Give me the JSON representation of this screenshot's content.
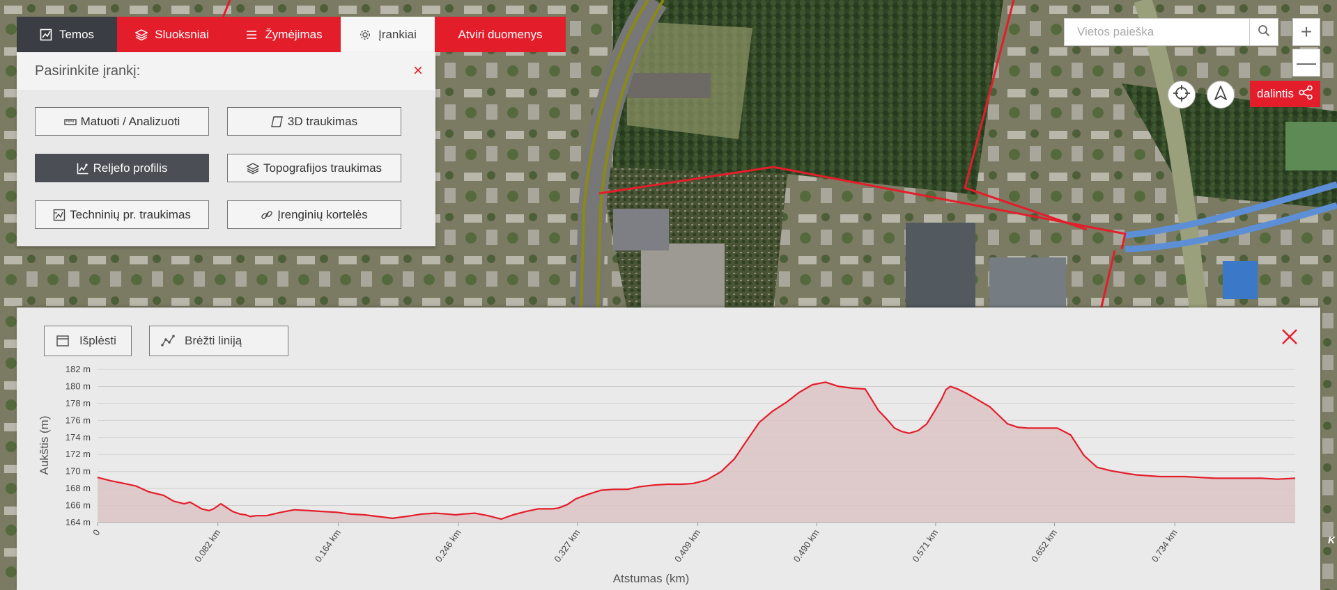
{
  "tabs": [
    {
      "label": "Temos",
      "icon": "chart-icon"
    },
    {
      "label": "Sluoksniai",
      "icon": "layers-icon"
    },
    {
      "label": "Žymėjimas",
      "icon": "menu-icon"
    },
    {
      "label": "Įrankiai",
      "icon": "gear-icon"
    },
    {
      "label": "Atviri duomenys",
      "icon": ""
    }
  ],
  "tools_panel": {
    "title": "Pasirinkite įrankį:",
    "close_icon": "close-icon",
    "buttons": [
      {
        "label": "Matuoti / Analizuoti",
        "icon": "ruler-icon",
        "active": false
      },
      {
        "label": "3D traukimas",
        "icon": "cube-icon",
        "active": false
      },
      {
        "label": "Reljefo profilis",
        "icon": "profile-icon",
        "active": true
      },
      {
        "label": "Topografijos traukimas",
        "icon": "layers-icon",
        "active": false
      },
      {
        "label": "Techninių pr. traukimas",
        "icon": "draft-icon",
        "active": false
      },
      {
        "label": "Įrenginių kortelės",
        "icon": "link-icon",
        "active": false
      }
    ]
  },
  "search": {
    "placeholder": "Vietos paieška",
    "value": ""
  },
  "zoom": {
    "in": "+",
    "out": "—"
  },
  "share": {
    "label": "dalintis"
  },
  "profile_panel": {
    "expand_label": "Išplėsti",
    "draw_label": "Brėžti liniją"
  },
  "map_corner_text": "K",
  "colors": {
    "accent": "#e41d2b",
    "dark": "#3a3d44",
    "profile_fill": "#dcc4c4",
    "profile_line": "#e41d2b"
  },
  "chart_data": {
    "type": "area",
    "xlabel": "Atstumas (km)",
    "ylabel": "Aukštis (m)",
    "x_ticks": [
      "0",
      "0.082 km",
      "0.164 km",
      "0.246 km",
      "0.327 km",
      "0.409 km",
      "0.490 km",
      "0.571 km",
      "0.652 km",
      "0.734 km"
    ],
    "x_tick_values": [
      0,
      0.082,
      0.164,
      0.246,
      0.327,
      0.409,
      0.49,
      0.571,
      0.652,
      0.734
    ],
    "y_ticks": [
      "164 m",
      "166 m",
      "168 m",
      "170 m",
      "172 m",
      "174 m",
      "176 m",
      "178 m",
      "180 m",
      "182 m"
    ],
    "y_tick_values": [
      164,
      166,
      168,
      170,
      172,
      174,
      176,
      178,
      180,
      182
    ],
    "xlim": [
      0,
      0.816
    ],
    "ylim": [
      164,
      182
    ],
    "grid": true,
    "series": [
      {
        "x": [
          0,
          0.009,
          0.018,
          0.026,
          0.035,
          0.045,
          0.052,
          0.059,
          0.063,
          0.071,
          0.076,
          0.079,
          0.084,
          0.092,
          0.097,
          0.101,
          0.104,
          0.108,
          0.115,
          0.125,
          0.134,
          0.144,
          0.153,
          0.163,
          0.172,
          0.182,
          0.191,
          0.201,
          0.21,
          0.221,
          0.23,
          0.238,
          0.244,
          0.249,
          0.257,
          0.266,
          0.275,
          0.283,
          0.292,
          0.3,
          0.306,
          0.31,
          0.314,
          0.32,
          0.326,
          0.334,
          0.343,
          0.352,
          0.361,
          0.369,
          0.379,
          0.388,
          0.398,
          0.406,
          0.415,
          0.425,
          0.434,
          0.443,
          0.451,
          0.46,
          0.469,
          0.478,
          0.487,
          0.496,
          0.505,
          0.514,
          0.523,
          0.532,
          0.538,
          0.543,
          0.548,
          0.553,
          0.559,
          0.565,
          0.57,
          0.575,
          0.578,
          0.581,
          0.586,
          0.592,
          0.597,
          0.602,
          0.608,
          0.614,
          0.62,
          0.627,
          0.634,
          0.641,
          0.648,
          0.654,
          0.663,
          0.672,
          0.681,
          0.69,
          0.7,
          0.708,
          0.716,
          0.724,
          0.733,
          0.741,
          0.751,
          0.761,
          0.771,
          0.782,
          0.793,
          0.804,
          0.816
        ],
        "values": [
          169.3,
          168.9,
          168.6,
          168.3,
          167.6,
          167.2,
          166.5,
          166.2,
          166.4,
          165.6,
          165.4,
          165.6,
          166.2,
          165.3,
          165.0,
          164.9,
          164.7,
          164.8,
          164.8,
          165.2,
          165.5,
          165.4,
          165.3,
          165.2,
          165.0,
          164.9,
          164.7,
          164.5,
          164.7,
          165.0,
          165.1,
          165.0,
          164.9,
          165.0,
          165.1,
          164.8,
          164.4,
          164.9,
          165.3,
          165.6,
          165.6,
          165.6,
          165.7,
          166.1,
          166.8,
          167.3,
          167.8,
          167.9,
          167.9,
          168.2,
          168.4,
          168.5,
          168.5,
          168.6,
          169.0,
          170.0,
          171.5,
          173.8,
          175.8,
          177.1,
          178.1,
          179.3,
          180.2,
          180.5,
          180.0,
          179.8,
          179.7,
          177.2,
          176.1,
          175.1,
          174.7,
          174.5,
          174.8,
          175.6,
          177.0,
          178.5,
          179.6,
          180.0,
          179.7,
          179.2,
          178.7,
          178.2,
          177.6,
          176.6,
          175.6,
          175.2,
          175.1,
          175.1,
          175.1,
          175.1,
          174.3,
          171.9,
          170.5,
          170.1,
          169.8,
          169.6,
          169.5,
          169.4,
          169.4,
          169.4,
          169.3,
          169.2,
          169.2,
          169.2,
          169.2,
          169.1,
          169.2
        ]
      }
    ]
  }
}
